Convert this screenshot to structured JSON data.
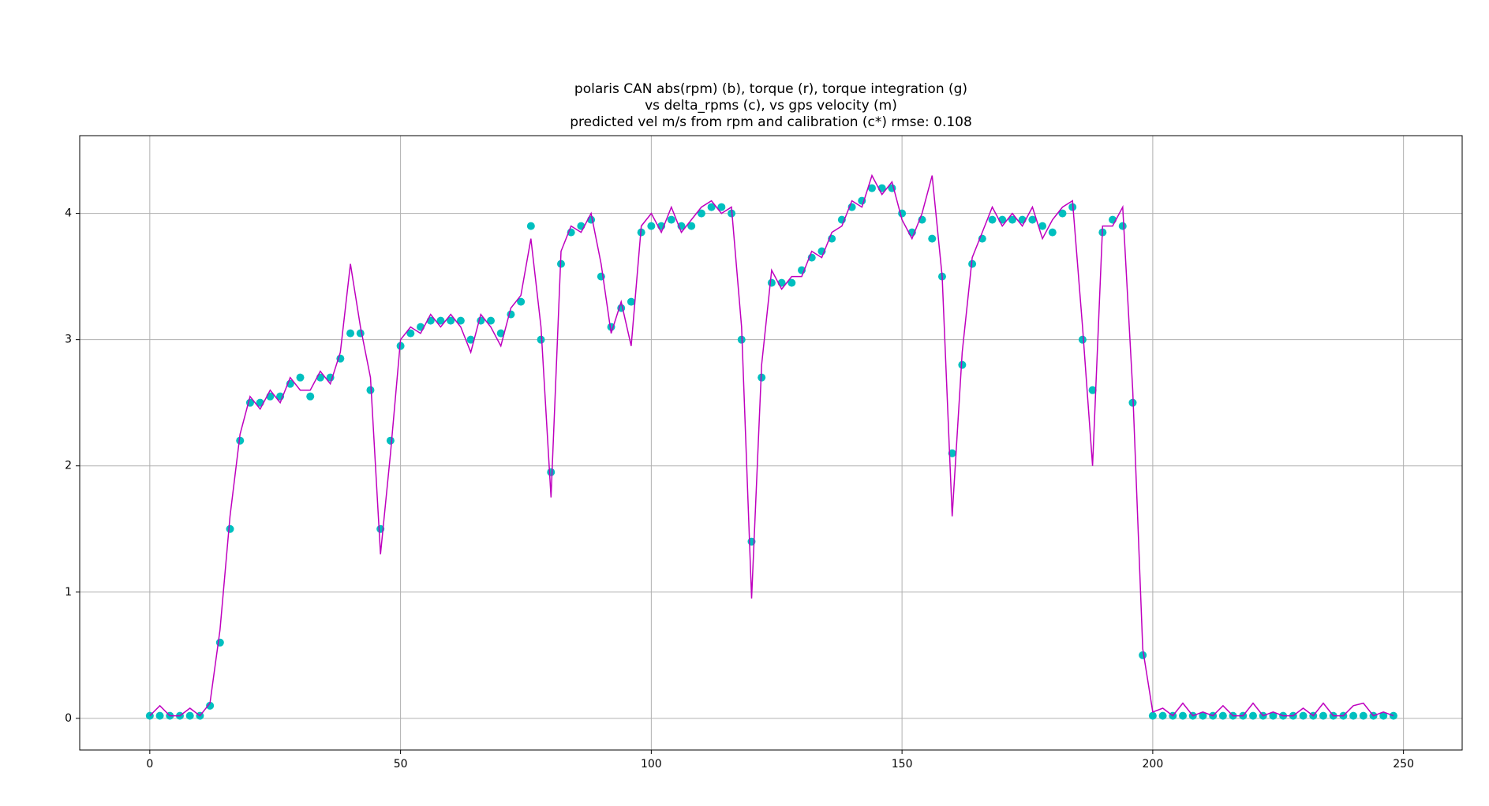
{
  "chart_data": {
    "type": "scatter",
    "title": [
      "polaris CAN abs(rpm) (b), torque (r), torque integration (g)",
      "vs delta_rpms (c), vs gps velocity (m)",
      "predicted vel m/s from rpm and calibration (c*) rmse: 0.108"
    ],
    "x": [
      0,
      2,
      4,
      6,
      8,
      10,
      12,
      14,
      16,
      18,
      20,
      22,
      24,
      26,
      28,
      30,
      32,
      34,
      36,
      38,
      40,
      42,
      44,
      46,
      48,
      50,
      52,
      54,
      56,
      58,
      60,
      62,
      64,
      66,
      68,
      70,
      72,
      74,
      76,
      78,
      80,
      82,
      84,
      86,
      88,
      90,
      92,
      94,
      96,
      98,
      100,
      102,
      104,
      106,
      108,
      110,
      112,
      114,
      116,
      118,
      120,
      122,
      124,
      126,
      128,
      130,
      132,
      134,
      136,
      138,
      140,
      142,
      144,
      146,
      148,
      150,
      152,
      154,
      156,
      158,
      160,
      162,
      164,
      166,
      168,
      170,
      172,
      174,
      176,
      178,
      180,
      182,
      184,
      186,
      188,
      190,
      192,
      194,
      196,
      198,
      200,
      202,
      204,
      206,
      208,
      210,
      212,
      214,
      216,
      218,
      220,
      222,
      224,
      226,
      228,
      230,
      232,
      234,
      236,
      238,
      240,
      242,
      244,
      246,
      248
    ],
    "series": [
      {
        "name": "predicted vel (c*)",
        "color": "#00bfbf",
        "mode": "markers",
        "values": [
          0.02,
          0.02,
          0.02,
          0.02,
          0.02,
          0.02,
          0.1,
          0.6,
          1.5,
          2.2,
          2.5,
          2.5,
          2.55,
          2.55,
          2.65,
          2.7,
          2.55,
          2.7,
          2.7,
          2.85,
          3.05,
          3.05,
          2.6,
          1.5,
          2.2,
          2.95,
          3.05,
          3.1,
          3.15,
          3.15,
          3.15,
          3.15,
          3.0,
          3.15,
          3.15,
          3.05,
          3.2,
          3.3,
          3.9,
          3.0,
          1.95,
          3.6,
          3.85,
          3.9,
          3.95,
          3.5,
          3.1,
          3.25,
          3.3,
          3.85,
          3.9,
          3.9,
          3.95,
          3.9,
          3.9,
          4.0,
          4.05,
          4.05,
          4.0,
          3.0,
          1.4,
          2.7,
          3.45,
          3.45,
          3.45,
          3.55,
          3.65,
          3.7,
          3.8,
          3.95,
          4.05,
          4.1,
          4.2,
          4.2,
          4.2,
          4.0,
          3.85,
          3.95,
          3.8,
          3.5,
          2.1,
          2.8,
          3.6,
          3.8,
          3.95,
          3.95,
          3.95,
          3.95,
          3.95,
          3.9,
          3.85,
          4.0,
          4.05,
          3.0,
          2.6,
          3.85,
          3.95,
          3.9,
          2.5,
          0.5,
          0.02,
          0.02,
          0.02,
          0.02,
          0.02,
          0.02,
          0.02,
          0.02,
          0.02,
          0.02,
          0.02,
          0.02,
          0.02,
          0.02,
          0.02,
          0.02,
          0.02,
          0.02,
          0.02,
          0.02,
          0.02,
          0.02,
          0.02,
          0.02,
          0.02
        ]
      },
      {
        "name": "gps velocity (m)",
        "color": "#bf00bf",
        "mode": "line",
        "values": [
          0.02,
          0.1,
          0.02,
          0.02,
          0.08,
          0.02,
          0.12,
          0.7,
          1.6,
          2.25,
          2.55,
          2.45,
          2.6,
          2.5,
          2.7,
          2.6,
          2.6,
          2.75,
          2.65,
          2.9,
          3.6,
          3.1,
          2.7,
          1.3,
          2.1,
          3.0,
          3.1,
          3.05,
          3.2,
          3.1,
          3.2,
          3.1,
          2.9,
          3.2,
          3.1,
          2.95,
          3.25,
          3.35,
          3.8,
          3.1,
          1.75,
          3.7,
          3.9,
          3.85,
          4.0,
          3.6,
          3.05,
          3.3,
          2.95,
          3.9,
          4.0,
          3.85,
          4.05,
          3.85,
          3.95,
          4.05,
          4.1,
          4.0,
          4.05,
          3.1,
          0.95,
          2.8,
          3.55,
          3.4,
          3.5,
          3.5,
          3.7,
          3.65,
          3.85,
          3.9,
          4.1,
          4.05,
          4.3,
          4.15,
          4.25,
          3.95,
          3.8,
          4.0,
          4.3,
          3.5,
          1.6,
          2.9,
          3.65,
          3.85,
          4.05,
          3.9,
          4.0,
          3.9,
          4.05,
          3.8,
          3.95,
          4.05,
          4.1,
          3.1,
          2.0,
          3.9,
          3.9,
          4.05,
          2.6,
          0.55,
          0.05,
          0.08,
          0.02,
          0.12,
          0.02,
          0.05,
          0.02,
          0.1,
          0.02,
          0.02,
          0.12,
          0.02,
          0.05,
          0.02,
          0.02,
          0.08,
          0.02,
          0.12,
          0.02,
          0.02,
          0.1,
          0.12,
          0.02,
          0.05,
          0.02
        ]
      }
    ],
    "xlim": [
      -13.98,
      261.7
    ],
    "ylim": [
      -0.251,
      4.616
    ],
    "xticks": [
      0,
      50,
      100,
      150,
      200,
      250
    ],
    "yticks": [
      0,
      1,
      2,
      3,
      4
    ],
    "grid": true
  }
}
